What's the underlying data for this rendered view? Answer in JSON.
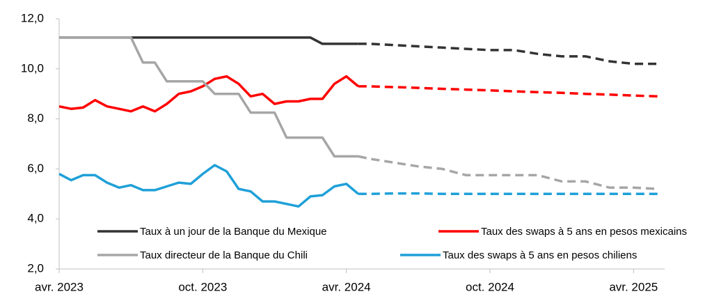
{
  "chart_data": {
    "type": "line",
    "x": [
      0,
      0.5,
      1,
      1.5,
      2,
      2.5,
      3,
      3.5,
      4,
      4.5,
      5,
      5.5,
      6,
      6.5,
      7,
      7.5,
      8,
      8.5,
      9,
      9.5,
      10,
      10.5,
      11,
      11.5,
      12,
      12.5,
      13,
      14,
      15,
      16,
      17,
      18,
      19,
      20,
      21,
      22,
      23,
      24,
      25
    ],
    "xlim": [
      0,
      25.3
    ],
    "xticks": [
      {
        "value": 0,
        "label": "avr. 2023"
      },
      {
        "value": 6,
        "label": "oct. 2023"
      },
      {
        "value": 12,
        "label": "avr. 2024"
      },
      {
        "value": 18,
        "label": "oct. 2024"
      },
      {
        "value": 24,
        "label": "avr. 2025"
      }
    ],
    "ylim": [
      2,
      12
    ],
    "yticks": [
      {
        "value": 2,
        "label": "2,0"
      },
      {
        "value": 4,
        "label": "4,0"
      },
      {
        "value": 6,
        "label": "6,0"
      },
      {
        "value": 8,
        "label": "8,0"
      },
      {
        "value": 10,
        "label": "10,0"
      },
      {
        "value": 12,
        "label": "12,0"
      }
    ],
    "series": [
      {
        "name": "Taux à un jour de la Banque du Mexique",
        "color": "#333333",
        "values": [
          11.25,
          11.25,
          11.25,
          11.25,
          11.25,
          11.25,
          11.25,
          11.25,
          11.25,
          11.25,
          11.25,
          11.25,
          11.25,
          11.25,
          11.25,
          11.25,
          11.25,
          11.25,
          11.25,
          11.25,
          11.25,
          11.25,
          11.0,
          11.0,
          11.0,
          11.0,
          null,
          null,
          null,
          null,
          null,
          null,
          null,
          null,
          null,
          null,
          null,
          null,
          null
        ],
        "forecast": [
          null,
          null,
          null,
          null,
          null,
          null,
          null,
          null,
          null,
          null,
          null,
          null,
          null,
          null,
          null,
          null,
          null,
          null,
          null,
          null,
          null,
          null,
          null,
          null,
          null,
          11.0,
          11.0,
          10.95,
          10.9,
          10.85,
          10.8,
          10.75,
          10.75,
          10.6,
          10.5,
          10.5,
          10.3,
          10.2,
          10.2
        ]
      },
      {
        "name": "Taux des swaps à 5 ans en pesos mexicains",
        "color": "#ff0000",
        "values": [
          8.5,
          8.4,
          8.45,
          8.75,
          8.5,
          8.4,
          8.3,
          8.5,
          8.3,
          8.6,
          9.0,
          9.1,
          9.3,
          9.6,
          9.7,
          9.4,
          8.9,
          9.0,
          8.6,
          8.7,
          8.7,
          8.8,
          8.8,
          9.4,
          9.7,
          9.3,
          null,
          null,
          null,
          null,
          null,
          null,
          null,
          null,
          null,
          null,
          null,
          null,
          null
        ],
        "forecast": [
          null,
          null,
          null,
          null,
          null,
          null,
          null,
          null,
          null,
          null,
          null,
          null,
          null,
          null,
          null,
          null,
          null,
          null,
          null,
          null,
          null,
          null,
          null,
          null,
          null,
          9.3,
          9.3,
          9.27,
          9.24,
          9.2,
          9.17,
          9.14,
          9.1,
          9.07,
          9.04,
          9.0,
          8.97,
          8.93,
          8.9
        ]
      },
      {
        "name": "Taux directeur de la Banque du Chili",
        "color": "#a6a6a6",
        "values": [
          11.25,
          11.25,
          11.25,
          11.25,
          11.25,
          11.25,
          11.25,
          10.25,
          10.25,
          9.5,
          9.5,
          9.5,
          9.5,
          9.0,
          9.0,
          9.0,
          8.25,
          8.25,
          8.25,
          7.25,
          7.25,
          7.25,
          7.25,
          6.5,
          6.5,
          6.5,
          null,
          null,
          null,
          null,
          null,
          null,
          null,
          null,
          null,
          null,
          null,
          null,
          null
        ],
        "forecast": [
          null,
          null,
          null,
          null,
          null,
          null,
          null,
          null,
          null,
          null,
          null,
          null,
          null,
          null,
          null,
          null,
          null,
          null,
          null,
          null,
          null,
          null,
          null,
          null,
          null,
          6.5,
          6.4,
          6.25,
          6.1,
          6.0,
          5.75,
          5.75,
          5.75,
          5.75,
          5.5,
          5.5,
          5.25,
          5.25,
          5.2
        ]
      },
      {
        "name": "Taux des swaps à 5 ans en pesos chiliens",
        "color": "#1fa0d8",
        "values": [
          5.8,
          5.55,
          5.75,
          5.75,
          5.45,
          5.25,
          5.35,
          5.15,
          5.15,
          5.3,
          5.45,
          5.4,
          5.8,
          6.15,
          5.9,
          5.2,
          5.1,
          4.7,
          4.7,
          4.6,
          4.5,
          4.9,
          4.95,
          5.3,
          5.4,
          5.0,
          null,
          null,
          null,
          null,
          null,
          null,
          null,
          null,
          null,
          null,
          null,
          null,
          null
        ],
        "forecast": [
          null,
          null,
          null,
          null,
          null,
          null,
          null,
          null,
          null,
          null,
          null,
          null,
          null,
          null,
          null,
          null,
          null,
          null,
          null,
          null,
          null,
          null,
          null,
          null,
          null,
          5.0,
          5.0,
          5.02,
          5.02,
          5.0,
          5.0,
          5.0,
          5.0,
          5.0,
          5.0,
          5.0,
          5.0,
          5.0,
          5.0
        ]
      }
    ]
  }
}
